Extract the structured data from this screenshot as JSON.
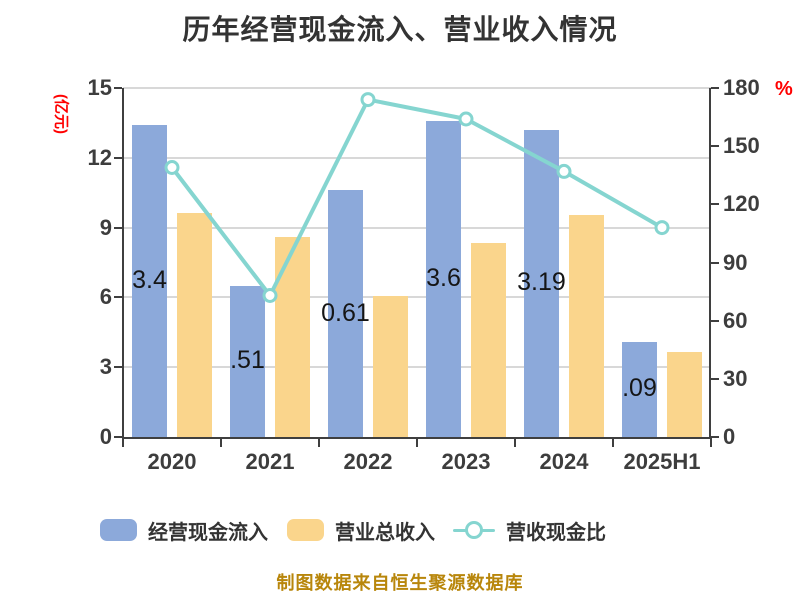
{
  "title": "历年经营现金流入、营业收入情况",
  "footer_note": "制图数据来自恒生聚源数据库",
  "left_axis": {
    "unit": "(亿元)"
  },
  "right_axis": {
    "unit": "%"
  },
  "legend": {
    "items": [
      {
        "label": "经营现金流入"
      },
      {
        "label": "营业总收入"
      },
      {
        "label": "营收现金比"
      }
    ]
  },
  "colors": {
    "bar_blue": "#8CA9DA",
    "bar_orange": "#FAD58C",
    "line_teal": "#85D5D0",
    "marker_fill": "#FFFFFF",
    "axis": "#3F3F3F",
    "grid": "#D8D8D8",
    "title_text": "#333333",
    "accent_red": "#FF0000",
    "footer_gold": "#B8860B"
  },
  "chart_data": {
    "type": "bar+line",
    "title": "历年经营现金流入、营业收入情况",
    "categories": [
      "2020",
      "2021",
      "2022",
      "2023",
      "2024",
      "2025H1"
    ],
    "series": [
      {
        "name": "经营现金流入",
        "type": "bar",
        "axis": "left",
        "color": "#8CA9DA",
        "values": [
          13.4,
          6.5,
          10.6,
          13.6,
          13.2,
          4.1
        ]
      },
      {
        "name": "营业总收入",
        "type": "bar",
        "axis": "left",
        "color": "#FAD58C",
        "values": [
          9.65,
          8.6,
          6.05,
          8.35,
          9.55,
          3.65
        ]
      },
      {
        "name": "营收现金比",
        "type": "line",
        "axis": "right",
        "color": "#85D5D0",
        "values": [
          139,
          73,
          174,
          164,
          137,
          108
        ]
      }
    ],
    "bar_value_labels_visible": [
      "3.4",
      ".51",
      "0.61",
      "3.6",
      "3.19",
      ".09"
    ],
    "left_ylim": [
      0,
      15
    ],
    "right_ylim": [
      0,
      180
    ],
    "left_yticks": [
      0,
      3,
      6,
      9,
      12,
      15
    ],
    "right_yticks": [
      0,
      30,
      60,
      90,
      120,
      150,
      180
    ],
    "left_axis_unit": "(亿元)",
    "right_axis_unit": "%",
    "grid": true,
    "legend_position": "bottom"
  }
}
